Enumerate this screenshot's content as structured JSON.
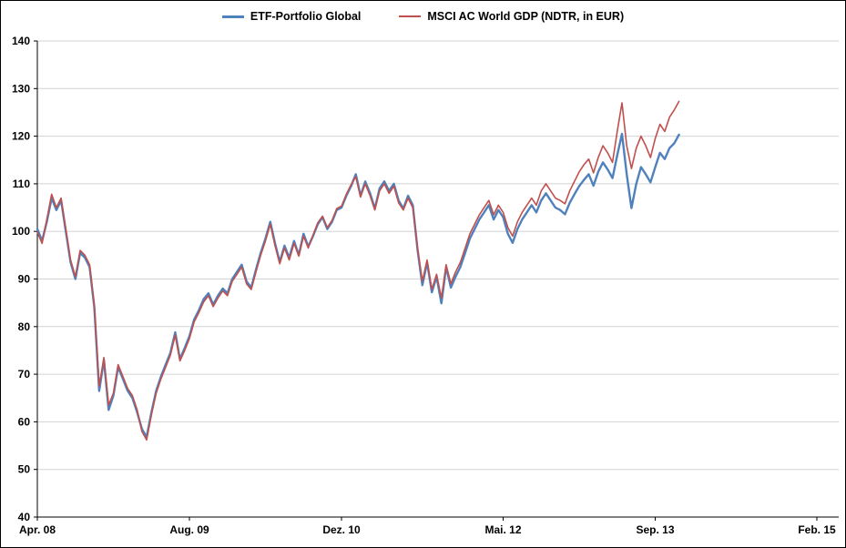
{
  "chart_data": {
    "type": "line",
    "title": "",
    "grid": "horizontal",
    "legend_position": "top-center",
    "x_unit": "months since Apr 2008",
    "x_start": 0,
    "x_step": 0.5,
    "x_axis": {
      "range": [
        0,
        84.3
      ],
      "ticks": [
        {
          "t": 0,
          "label": "Apr. 08"
        },
        {
          "t": 16,
          "label": "Aug. 09"
        },
        {
          "t": 32,
          "label": "Dez. 10"
        },
        {
          "t": 49,
          "label": "Mai. 12"
        },
        {
          "t": 65,
          "label": "Sep. 13"
        },
        {
          "t": 82,
          "label": "Feb. 15"
        }
      ]
    },
    "y_axis": {
      "range": [
        40,
        140
      ],
      "tick_step": 10,
      "ticks": [
        40,
        50,
        60,
        70,
        80,
        90,
        100,
        110,
        120,
        130,
        140
      ]
    },
    "series": [
      {
        "name": "ETF-Portfolio Global",
        "color": "#4F81BD",
        "values": [
          100.5,
          98,
          102,
          107,
          104.5,
          106.5,
          100,
          93.5,
          90,
          95.5,
          94.5,
          92.5,
          84,
          66.5,
          73,
          62.5,
          65.5,
          71.5,
          69,
          66.5,
          65,
          62,
          58.5,
          56.8,
          62,
          66.5,
          69.5,
          72,
          74.5,
          78.8,
          73.2,
          75.5,
          78,
          81.5,
          83.5,
          85.8,
          87,
          84.6,
          86.5,
          88,
          87,
          90,
          91.5,
          93,
          89.5,
          88.2,
          92,
          95.5,
          98.5,
          102,
          97.5,
          93.6,
          97,
          94.5,
          98,
          95,
          99.5,
          96.8,
          99,
          101.5,
          103,
          100.5,
          102,
          104.5,
          105,
          107.5,
          109.5,
          112,
          107.5,
          110.5,
          108,
          104.8,
          109,
          110.5,
          108.5,
          110,
          106.5,
          104.8,
          107.5,
          105.5,
          96,
          88.7,
          93.5,
          87.2,
          90.5,
          84.9,
          92.5,
          88.2,
          90.5,
          92.5,
          95.5,
          98.5,
          100.5,
          102.5,
          104,
          105.5,
          102.5,
          104.5,
          103,
          99.5,
          97.6,
          100.5,
          102.5,
          104,
          105.5,
          104,
          106.5,
          108,
          106.5,
          105,
          104.5,
          103.6,
          106,
          107.8,
          109.5,
          110.8,
          112,
          109.6,
          112.5,
          114.5,
          113,
          111.2,
          116,
          120.5,
          112,
          104.9,
          110,
          113.5,
          112,
          110.3,
          113.5,
          116.5,
          115.2,
          117.5,
          118.5,
          120.3
        ]
      },
      {
        "name": "MSCI AC World GDP (NDTR, in EUR)",
        "color": "#C0504D",
        "values": [
          99.8,
          97.5,
          102.5,
          107.8,
          105,
          107,
          100.5,
          94,
          90.5,
          96,
          95,
          93,
          84.5,
          67.5,
          73.5,
          63.5,
          66,
          72,
          69.5,
          67,
          65.5,
          62.5,
          58,
          56.2,
          61.5,
          66,
          69,
          71.5,
          74,
          78.2,
          72.8,
          75,
          77.5,
          81,
          83,
          85.2,
          86.5,
          84.2,
          86,
          87.5,
          86.5,
          89.5,
          91,
          92.5,
          89,
          87.8,
          91.5,
          95,
          98,
          101.5,
          97,
          93.2,
          96.5,
          94,
          97.5,
          94.8,
          99,
          96.5,
          99.2,
          101.8,
          103.2,
          100.8,
          102.3,
          104.8,
          105.3,
          107.8,
          109.8,
          111.5,
          107.2,
          110,
          107.5,
          104.5,
          108.5,
          110,
          108,
          109.5,
          106,
          104.5,
          107,
          105,
          96.5,
          89.5,
          94,
          87.8,
          91,
          86,
          93,
          89,
          91.5,
          93.5,
          96.5,
          99.5,
          101.5,
          103.5,
          105,
          106.5,
          103.5,
          105.5,
          104,
          100.8,
          99,
          102,
          104,
          105.5,
          107,
          105.5,
          108.5,
          110,
          108.5,
          107,
          106.5,
          105.8,
          108.5,
          110.5,
          112.5,
          114,
          115.2,
          112.3,
          115.5,
          118,
          116.5,
          114.5,
          121,
          127,
          118,
          113.2,
          117.5,
          120,
          118,
          115.5,
          119.5,
          122.5,
          121,
          124,
          125.5,
          127.3
        ]
      }
    ]
  }
}
